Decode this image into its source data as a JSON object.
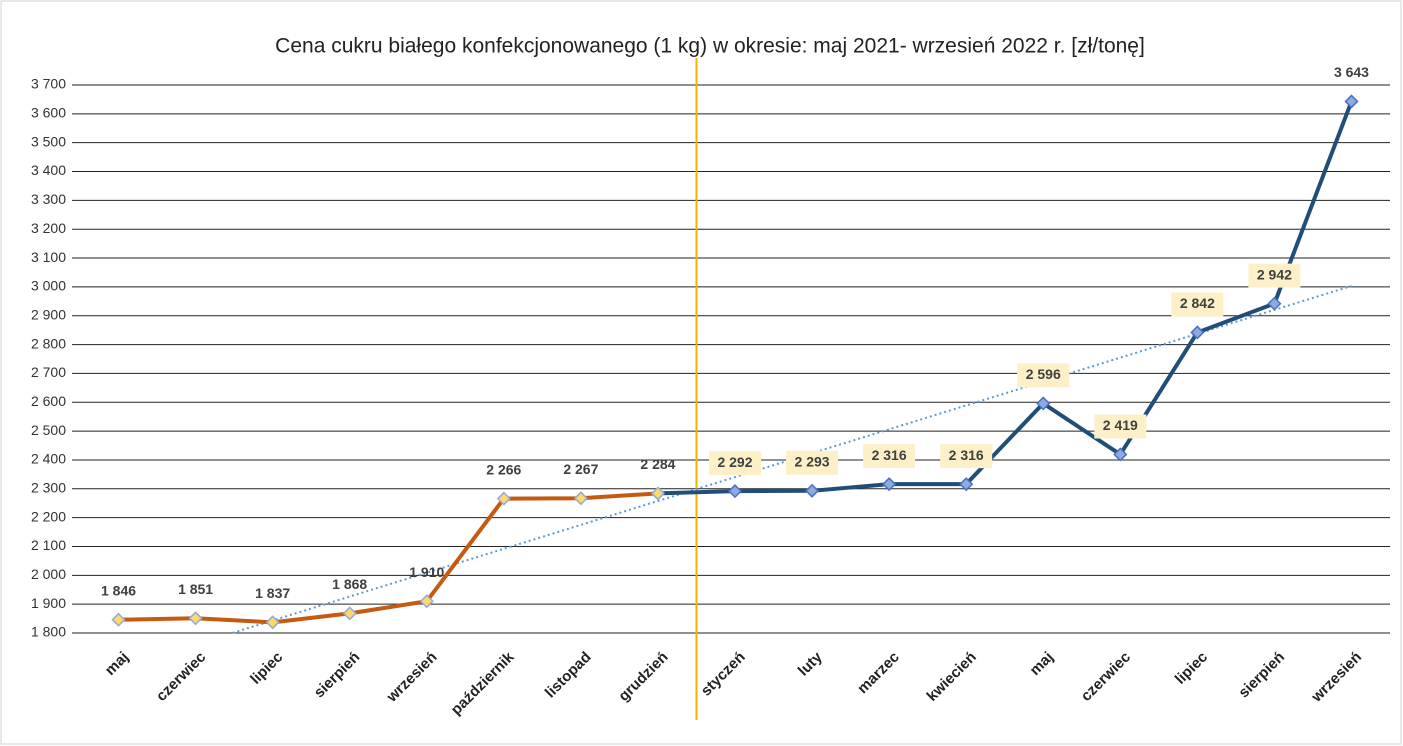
{
  "chart_data": {
    "type": "line",
    "title": "Cena cukru białego konfekcjonowanego (1 kg) w okresie: maj 2021- wrzesień 2022 r. [zł/tonę]",
    "categories": [
      "maj",
      "czerwiec",
      "lipiec",
      "sierpień",
      "wrzesień",
      "październik",
      "listopad",
      "grudzień",
      "styczeń",
      "luty",
      "marzec",
      "kwiecień",
      "maj",
      "czerwiec",
      "lipiec",
      "sierpień",
      "wrzesień"
    ],
    "series": [
      {
        "color": "#c55a11",
        "marker_fill": "#ffd966",
        "marker_stroke": "#8faadc",
        "values": [
          1846,
          1851,
          1837,
          1868,
          1910,
          2266,
          2267,
          2284,
          null,
          null,
          null,
          null,
          null,
          null,
          null,
          null,
          null
        ],
        "value_labels": [
          "1 846",
          "1 851",
          "1 837",
          "1 868",
          "1 910",
          "2 266",
          "2 267",
          "2 284",
          null,
          null,
          null,
          null,
          null,
          null,
          null,
          null,
          null
        ]
      },
      {
        "color": "#1f4e79",
        "marker_fill": "#8faadc",
        "marker_stroke": "#4472c4",
        "label_background": "#fdf0c8",
        "values": [
          null,
          null,
          null,
          null,
          null,
          null,
          null,
          null,
          2292,
          2293,
          2316,
          2316,
          2596,
          2419,
          2842,
          2942,
          3643
        ],
        "value_labels": [
          null,
          null,
          null,
          null,
          null,
          null,
          null,
          null,
          "2 292",
          "2 293",
          "2 316",
          "2 316",
          "2 596",
          "2 419",
          "2 842",
          "2 942",
          "3 643"
        ]
      }
    ],
    "trendline": {
      "color": "#5b9bd5",
      "dash": "dotted"
    },
    "ylim": [
      1800,
      3700
    ],
    "yticks": [
      {
        "value": 1800,
        "label": "1 800"
      },
      {
        "value": 1900,
        "label": "1 900"
      },
      {
        "value": 2000,
        "label": "2 000"
      },
      {
        "value": 2100,
        "label": "2 100"
      },
      {
        "value": 2200,
        "label": "2 200"
      },
      {
        "value": 2300,
        "label": "2 300"
      },
      {
        "value": 2400,
        "label": "2 400"
      },
      {
        "value": 2500,
        "label": "2 500"
      },
      {
        "value": 2600,
        "label": "2 600"
      },
      {
        "value": 2700,
        "label": "2 700"
      },
      {
        "value": 2800,
        "label": "2 800"
      },
      {
        "value": 2900,
        "label": "2 900"
      },
      {
        "value": 3000,
        "label": "3 000"
      },
      {
        "value": 3100,
        "label": "3 100"
      },
      {
        "value": 3200,
        "label": "3 200"
      },
      {
        "value": 3300,
        "label": "3 300"
      },
      {
        "value": 3400,
        "label": "3 400"
      },
      {
        "value": 3500,
        "label": "3 500"
      },
      {
        "value": 3600,
        "label": "3 600"
      },
      {
        "value": 3700,
        "label": "3 700"
      }
    ],
    "grid": true
  }
}
